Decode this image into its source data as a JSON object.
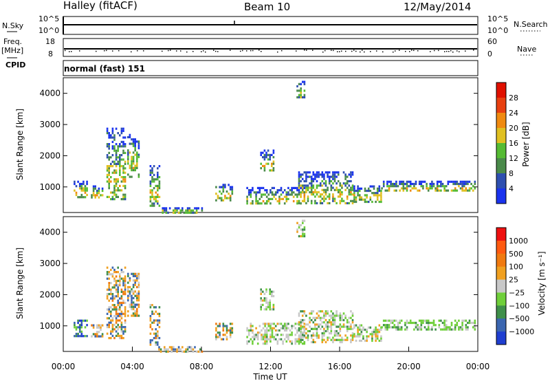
{
  "header": {
    "station": "Halley (fitACF)",
    "beam": "Beam 10",
    "date": "12/May/2014"
  },
  "left_labels": {
    "nsky": "N.Sky",
    "freq_line1": "Freq.",
    "freq_line2": "[MHz]",
    "cpid": "CPID"
  },
  "right_labels": {
    "nsearch": "N.Search",
    "nave": "Nave"
  },
  "top_panels": {
    "nsky_ticks": [
      "10^5",
      "10^0"
    ],
    "nsearch_ticks": [
      "10^5",
      "10^0"
    ],
    "freq_ticks": [
      "18",
      "8"
    ],
    "nave_ticks": [
      "60",
      "0"
    ],
    "cpid_text": "normal (fast) 151"
  },
  "chart_data": [
    {
      "type": "heatmap",
      "name": "power",
      "ylabel": "Slant Range [km]",
      "yticks": [
        "1000",
        "2000",
        "3000",
        "4000"
      ],
      "ylim": [
        180,
        4500
      ],
      "xlim": [
        0,
        24
      ],
      "colorbar_label": "Power [dB]",
      "colorbar_ticks": [
        "4",
        "8",
        "12",
        "16",
        "20",
        "24",
        "28"
      ],
      "colorbar_colors": [
        "#1a33ee",
        "#2e4fb0",
        "#4a8a4a",
        "#55bb33",
        "#e0c021",
        "#f08a10",
        "#e84010",
        "#e01000"
      ],
      "regions": [
        {
          "x0": 0.6,
          "x1": 1.4,
          "y0": 700,
          "y1": 1200
        },
        {
          "x0": 1.6,
          "x1": 2.3,
          "y0": 650,
          "y1": 1050
        },
        {
          "x0": 2.5,
          "x1": 3.6,
          "y0": 600,
          "y1": 2900
        },
        {
          "x0": 3.7,
          "x1": 4.4,
          "y0": 1300,
          "y1": 2700
        },
        {
          "x0": 5.0,
          "x1": 5.6,
          "y0": 400,
          "y1": 1700
        },
        {
          "x0": 5.5,
          "x1": 8.0,
          "y0": 200,
          "y1": 350
        },
        {
          "x0": 8.8,
          "x1": 9.8,
          "y0": 600,
          "y1": 1100
        },
        {
          "x0": 11.4,
          "x1": 12.2,
          "y0": 1500,
          "y1": 2200
        },
        {
          "x0": 10.6,
          "x1": 14.0,
          "y0": 450,
          "y1": 1000
        },
        {
          "x0": 13.6,
          "x1": 16.8,
          "y0": 450,
          "y1": 1500
        },
        {
          "x0": 16.8,
          "x1": 18.4,
          "y0": 550,
          "y1": 1050
        },
        {
          "x0": 18.4,
          "x1": 23.8,
          "y0": 850,
          "y1": 1200
        },
        {
          "x0": 13.5,
          "x1": 14.0,
          "y0": 3900,
          "y1": 4400
        }
      ]
    },
    {
      "type": "heatmap",
      "name": "velocity",
      "ylabel": "Slant Range [km]",
      "yticks": [
        "1000",
        "2000",
        "3000",
        "4000"
      ],
      "ylim": [
        180,
        4500
      ],
      "xlim": [
        0,
        24
      ],
      "xticks": [
        "00:00",
        "04:00",
        "08:00",
        "12:00",
        "16:00",
        "20:00",
        "00:00"
      ],
      "xlabel": "Time UT",
      "colorbar_label": "Velocity [m s⁻¹]",
      "colorbar_ticks": [
        "1000",
        "500",
        "100",
        "25",
        "−25",
        "−100",
        "−500",
        "−1000"
      ],
      "colorbar_colors": [
        "#1f3ed0",
        "#3b66b0",
        "#3f8f4a",
        "#6fcf3a",
        "#c8c8c8",
        "#f0a020",
        "#f07a10",
        "#ff5a10",
        "#ee1010"
      ],
      "regions": [
        {
          "x0": 0.6,
          "x1": 1.4,
          "y0": 700,
          "y1": 1200
        },
        {
          "x0": 1.6,
          "x1": 2.3,
          "y0": 650,
          "y1": 1050
        },
        {
          "x0": 2.5,
          "x1": 3.6,
          "y0": 600,
          "y1": 2900
        },
        {
          "x0": 3.7,
          "x1": 4.4,
          "y0": 1300,
          "y1": 2700
        },
        {
          "x0": 5.0,
          "x1": 5.6,
          "y0": 400,
          "y1": 1700
        },
        {
          "x0": 5.5,
          "x1": 8.0,
          "y0": 200,
          "y1": 350
        },
        {
          "x0": 8.8,
          "x1": 9.8,
          "y0": 600,
          "y1": 1100
        },
        {
          "x0": 11.4,
          "x1": 12.2,
          "y0": 1500,
          "y1": 2200
        },
        {
          "x0": 10.6,
          "x1": 14.0,
          "y0": 450,
          "y1": 1100
        },
        {
          "x0": 13.6,
          "x1": 16.8,
          "y0": 450,
          "y1": 1500
        },
        {
          "x0": 16.8,
          "x1": 18.4,
          "y0": 550,
          "y1": 1050
        },
        {
          "x0": 18.4,
          "x1": 23.8,
          "y0": 850,
          "y1": 1200
        },
        {
          "x0": 13.5,
          "x1": 14.0,
          "y0": 3900,
          "y1": 4400
        }
      ]
    }
  ]
}
